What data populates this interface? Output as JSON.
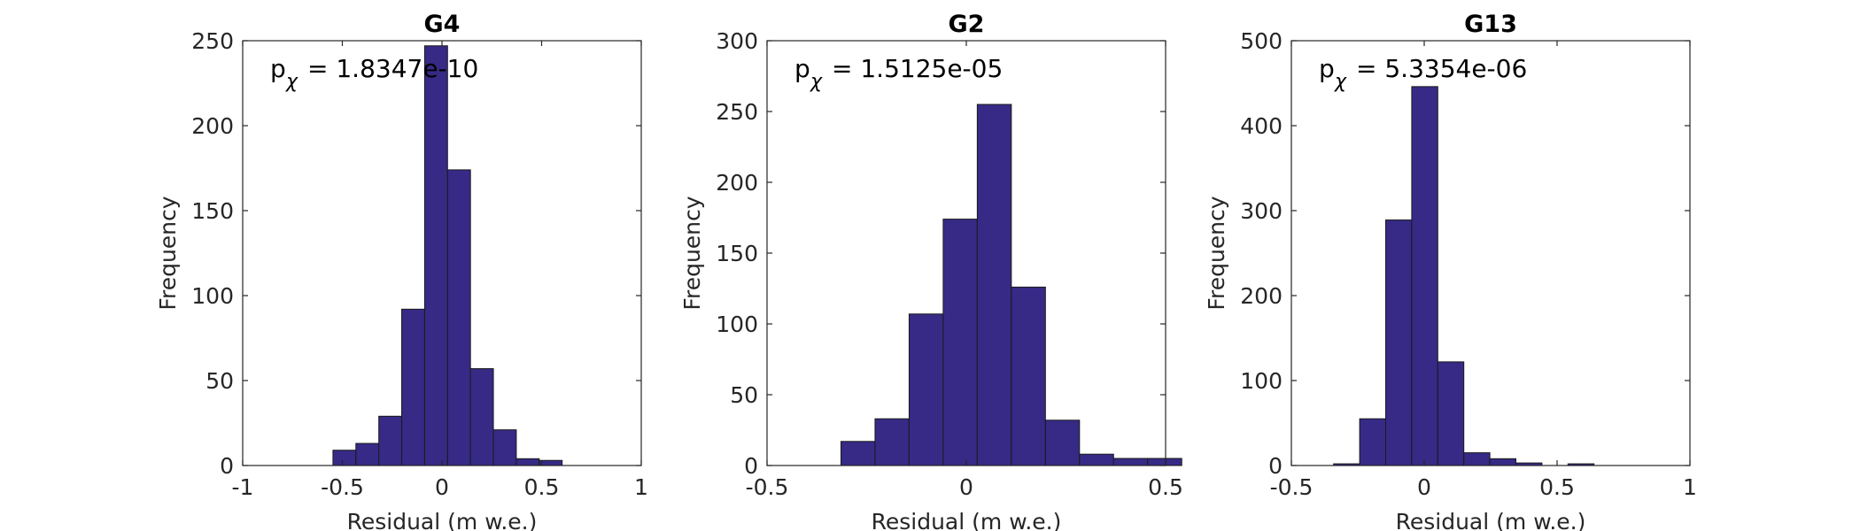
{
  "chart_data": [
    {
      "type": "bar",
      "title": "G4",
      "xlabel": "Residual (m w.e.)",
      "ylabel": "Frequency",
      "annotation": {
        "p": "p",
        "sub": "χ",
        "value": "= 1.8347e-10"
      },
      "xlim": [
        -1,
        1
      ],
      "ylim": [
        0,
        250
      ],
      "xticks": [
        -1,
        -0.5,
        0,
        0.5,
        1
      ],
      "xtick_labels": [
        "-1",
        "-0.5",
        "0",
        "0.5",
        "1"
      ],
      "yticks": [
        0,
        50,
        100,
        150,
        200,
        250
      ],
      "ytick_labels": [
        "0",
        "50",
        "100",
        "150",
        "200",
        "250"
      ],
      "bin_width": 0.115,
      "bin_left": -0.547,
      "values": [
        9,
        13,
        29,
        92,
        247,
        174,
        57,
        21,
        4,
        3
      ],
      "color": "#362A86"
    },
    {
      "type": "bar",
      "title": "G2",
      "xlabel": "Residual (m w.e.)",
      "ylabel": "Frequency",
      "annotation": {
        "p": "p",
        "sub": "χ",
        "value": "= 1.5125e-05"
      },
      "xlim": [
        -0.5,
        0.5
      ],
      "ylim": [
        0,
        300
      ],
      "xticks": [
        -0.5,
        0,
        0.5
      ],
      "xtick_labels": [
        "-0.5",
        "0",
        "0.5"
      ],
      "yticks": [
        0,
        50,
        100,
        150,
        200,
        250,
        300
      ],
      "ytick_labels": [
        "0",
        "50",
        "100",
        "150",
        "200",
        "250",
        "300"
      ],
      "bin_width": 0.0855,
      "bin_left": -0.3145,
      "values": [
        17,
        33,
        107,
        174,
        255,
        126,
        32,
        8,
        5,
        5
      ],
      "color": "#362A86"
    },
    {
      "type": "bar",
      "title": "G13",
      "xlabel": "Residual (m w.e.)",
      "ylabel": "Frequency",
      "annotation": {
        "p": "p",
        "sub": "χ",
        "value": "= 5.3354e-06"
      },
      "xlim": [
        -0.5,
        1
      ],
      "ylim": [
        0,
        500
      ],
      "xticks": [
        -0.5,
        0,
        0.5,
        1
      ],
      "xtick_labels": [
        "-0.5",
        "0",
        "0.5",
        "1"
      ],
      "yticks": [
        0,
        100,
        200,
        300,
        400,
        500
      ],
      "ytick_labels": [
        "0",
        "100",
        "200",
        "300",
        "400",
        "500"
      ],
      "bin_width": 0.098,
      "bin_left": -0.341,
      "values": [
        2,
        55,
        289,
        446,
        122,
        15,
        8,
        3,
        0,
        2
      ],
      "color": "#362A86"
    }
  ]
}
